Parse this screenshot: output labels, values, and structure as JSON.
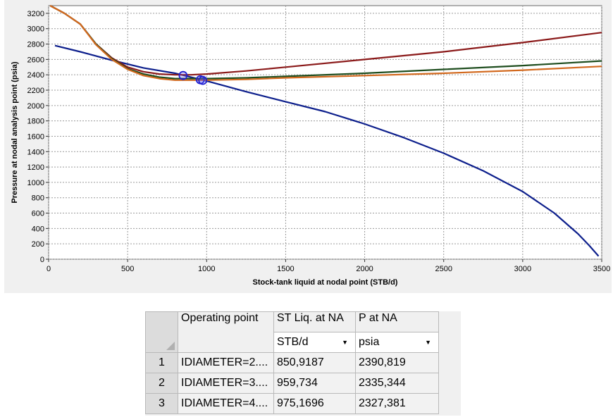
{
  "chart_data": {
    "type": "line",
    "xlabel": "Stock-tank liquid at nodal point (STB/d)",
    "ylabel": "Pressure at nodal analysis point (psia)",
    "xlim": [
      0,
      3500
    ],
    "ylim": [
      0,
      3300
    ],
    "x_ticks": [
      "0",
      "500",
      "1000",
      "1500",
      "2000",
      "2500",
      "3000",
      "3500"
    ],
    "y_ticks": [
      "0",
      "200",
      "400",
      "600",
      "800",
      "1000",
      "1200",
      "1400",
      "1600",
      "1800",
      "2000",
      "2200",
      "2400",
      "2600",
      "2800",
      "3000",
      "3200"
    ],
    "grid": true,
    "legend": "none",
    "series": [
      {
        "color": "#0d1f8c",
        "points": [
          [
            40,
            2780
          ],
          [
            200,
            2700
          ],
          [
            400,
            2590
          ],
          [
            600,
            2490
          ],
          [
            800,
            2420
          ],
          [
            1000,
            2320
          ],
          [
            1250,
            2180
          ],
          [
            1500,
            2050
          ],
          [
            1750,
            1920
          ],
          [
            2000,
            1760
          ],
          [
            2250,
            1580
          ],
          [
            2500,
            1380
          ],
          [
            2750,
            1150
          ],
          [
            3000,
            880
          ],
          [
            3200,
            600
          ],
          [
            3350,
            330
          ],
          [
            3420,
            180
          ],
          [
            3480,
            40
          ]
        ]
      },
      {
        "color": "#8b1a1a",
        "points": [
          [
            10,
            3300
          ],
          [
            100,
            3200
          ],
          [
            200,
            3060
          ],
          [
            300,
            2800
          ],
          [
            400,
            2620
          ],
          [
            500,
            2500
          ],
          [
            600,
            2440
          ],
          [
            700,
            2410
          ],
          [
            800,
            2400
          ],
          [
            900,
            2400
          ],
          [
            1000,
            2410
          ],
          [
            1250,
            2450
          ],
          [
            1500,
            2500
          ],
          [
            2000,
            2600
          ],
          [
            2500,
            2700
          ],
          [
            3000,
            2820
          ],
          [
            3500,
            2950
          ]
        ]
      },
      {
        "color": "#1e4d1e",
        "points": [
          [
            10,
            3300
          ],
          [
            100,
            3200
          ],
          [
            200,
            3060
          ],
          [
            300,
            2800
          ],
          [
            400,
            2610
          ],
          [
            500,
            2480
          ],
          [
            600,
            2410
          ],
          [
            700,
            2370
          ],
          [
            800,
            2350
          ],
          [
            1000,
            2350
          ],
          [
            1250,
            2360
          ],
          [
            1500,
            2380
          ],
          [
            2000,
            2420
          ],
          [
            2500,
            2470
          ],
          [
            3000,
            2520
          ],
          [
            3500,
            2580
          ]
        ]
      },
      {
        "color": "#d2691e",
        "points": [
          [
            10,
            3300
          ],
          [
            100,
            3200
          ],
          [
            200,
            3060
          ],
          [
            300,
            2790
          ],
          [
            400,
            2600
          ],
          [
            500,
            2470
          ],
          [
            600,
            2390
          ],
          [
            700,
            2350
          ],
          [
            800,
            2330
          ],
          [
            1000,
            2330
          ],
          [
            1250,
            2340
          ],
          [
            1500,
            2360
          ],
          [
            2000,
            2390
          ],
          [
            2500,
            2420
          ],
          [
            3000,
            2460
          ],
          [
            3500,
            2510
          ]
        ]
      }
    ],
    "operating_points": [
      {
        "x": 850.9187,
        "y": 2390.819
      },
      {
        "x": 959.734,
        "y": 2335.344
      },
      {
        "x": 975.1696,
        "y": 2327.381
      }
    ]
  },
  "table": {
    "headers": [
      "Operating point",
      "ST Liq. at NA",
      "P at NA"
    ],
    "units": [
      "STB/d",
      "psia"
    ],
    "rows": [
      {
        "num": "1",
        "name": "IDIAMETER=2....",
        "st": "850,9187",
        "p": "2390,819"
      },
      {
        "num": "2",
        "name": "IDIAMETER=3....",
        "st": "959,734",
        "p": "2335,344"
      },
      {
        "num": "3",
        "name": "IDIAMETER=4....",
        "st": "975,1696",
        "p": "2327,381"
      }
    ]
  }
}
